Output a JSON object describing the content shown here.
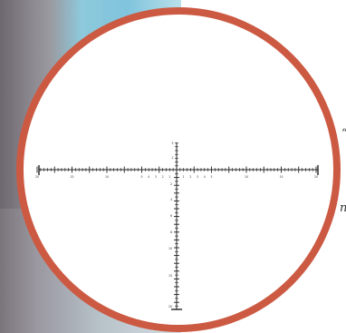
{
  "reticle": {
    "rim_color": "#cc5a43",
    "face_color": "#ffffff",
    "line_color": "#222222",
    "horizontal_labels": [
      "20",
      "15",
      "10",
      "5",
      "4",
      "3",
      "2",
      "1",
      "1",
      "2",
      "3",
      "4",
      "5",
      "10",
      "15",
      "20"
    ],
    "vertical_labels_top": [
      "5",
      "2"
    ],
    "vertical_labels_bottom": [
      "2",
      "4",
      "6",
      "8",
      "10",
      "15",
      "20"
    ]
  },
  "side_text": {
    "top_right": "“",
    "bottom_right": "n"
  }
}
